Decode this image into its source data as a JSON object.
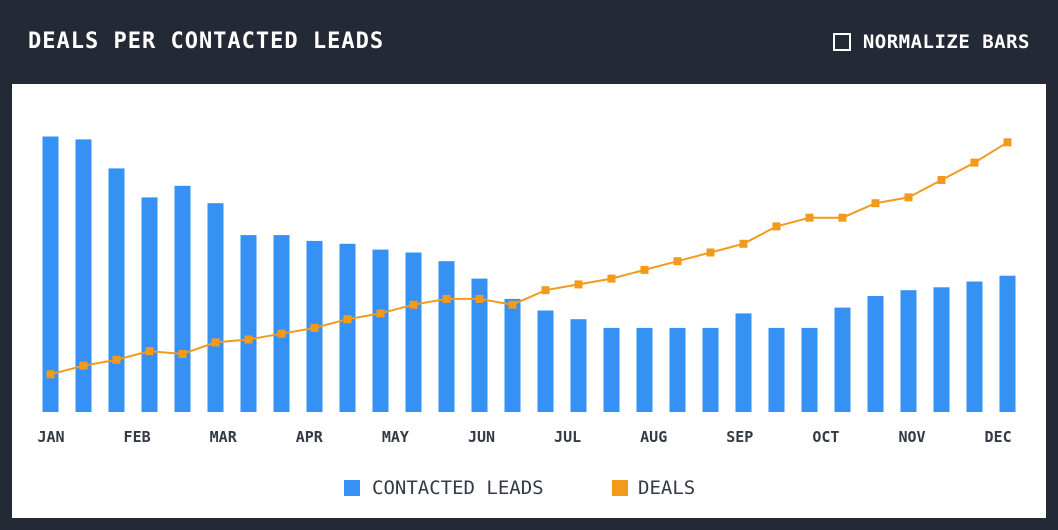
{
  "header": {
    "title": "DEALS PER CONTACTED LEADS",
    "normalize_label": "NORMALIZE BARS",
    "normalize_checked": false
  },
  "colors": {
    "background": "#242a35",
    "panel": "#ffffff",
    "bars": "#3592f4",
    "line": "#f39a1d",
    "tick_text": "#333a45"
  },
  "chart_data": {
    "type": "bar",
    "title": "DEALS PER CONTACTED LEADS",
    "xlabel": "",
    "ylabel": "",
    "grid": false,
    "legend_position": "bottom-center",
    "tick_labels": [
      "JAN",
      "FEB",
      "MAR",
      "APR",
      "MAY",
      "JUN",
      "JUL",
      "AUG",
      "SEP",
      "OCT",
      "NOV",
      "DEC"
    ],
    "ylim": [
      0,
      100
    ],
    "series": [
      {
        "name": "CONTACTED LEADS",
        "type": "bar",
        "values": [
          95,
          94,
          84,
          74,
          78,
          72,
          61,
          61,
          59,
          58,
          56,
          55,
          52,
          46,
          39,
          35,
          32,
          29,
          29,
          29,
          29,
          34,
          29,
          29,
          36,
          40,
          42,
          43,
          45,
          47
        ]
      },
      {
        "name": "DEALS",
        "type": "line",
        "values": [
          13,
          16,
          18,
          21,
          20,
          24,
          25,
          27,
          29,
          32,
          34,
          37,
          39,
          39,
          37,
          42,
          44,
          46,
          49,
          52,
          55,
          58,
          64,
          67,
          67,
          72,
          74,
          80,
          86,
          93
        ]
      }
    ]
  }
}
